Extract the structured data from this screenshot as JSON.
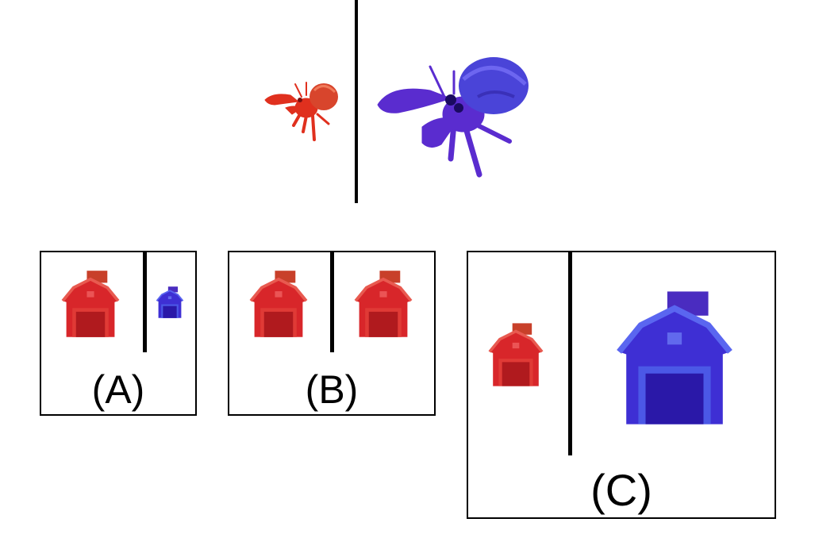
{
  "scene": {
    "top": {
      "left_animal": {
        "icon": "hermit-crab-icon",
        "color": "#e0301e",
        "shell": "#d8452c",
        "size": "small"
      },
      "right_animal": {
        "icon": "hermit-crab-icon",
        "color": "#5a2ccf",
        "shell": "#4a44d8",
        "size": "large"
      }
    },
    "options": [
      {
        "label": "(A)",
        "left_house": {
          "icon": "barn-icon",
          "color": "#d8262a",
          "size": "medium"
        },
        "right_house": {
          "icon": "barn-icon",
          "color": "#3a22c8",
          "size": "small"
        }
      },
      {
        "label": "(B)",
        "left_house": {
          "icon": "barn-icon",
          "color": "#d8262a",
          "size": "medium"
        },
        "right_house": {
          "icon": "barn-icon",
          "color": "#d8262a",
          "size": "medium"
        }
      },
      {
        "label": "(C)",
        "left_house": {
          "icon": "barn-icon",
          "color": "#d8262a",
          "size": "medium"
        },
        "right_house": {
          "icon": "barn-icon",
          "color": "#3e2fd4",
          "size": "large"
        }
      }
    ]
  }
}
